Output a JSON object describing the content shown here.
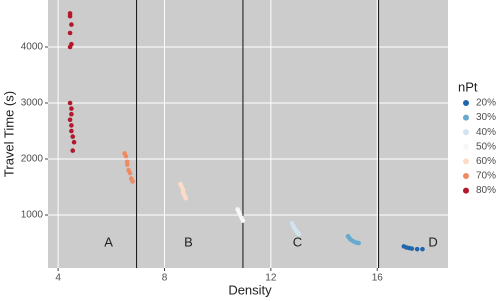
{
  "chart_data": {
    "type": "scatter",
    "x_label": "Density",
    "y_label": "Travel Time (s)",
    "legend_title": "nPt",
    "xlim": [
      3.62,
      18.66
    ],
    "ylim": [
      54,
      4839
    ],
    "xticks": [
      4,
      8,
      12,
      16
    ],
    "yticks": [
      1000,
      2000,
      3000,
      4000
    ],
    "grid": true,
    "legend": "right",
    "vlines": [
      6.95,
      10.95,
      16.05
    ],
    "annotations": [
      {
        "text": "A",
        "x": 5.9,
        "y": 500
      },
      {
        "text": "B",
        "x": 8.9,
        "y": 500
      },
      {
        "text": "C",
        "x": 13.0,
        "y": 500
      },
      {
        "text": "D",
        "x": 18.1,
        "y": 500
      }
    ],
    "series": [
      {
        "name": "20%",
        "color": "#2166ac",
        "x": [
          17.0,
          17.1,
          17.2,
          17.3,
          17.5,
          17.7
        ],
        "values": [
          440,
          420,
          410,
          400,
          390,
          390
        ]
      },
      {
        "name": "30%",
        "color": "#67a9cf",
        "x": [
          14.9,
          14.95,
          15.0,
          15.1,
          15.2,
          15.3
        ],
        "values": [
          620,
          590,
          560,
          530,
          510,
          500
        ]
      },
      {
        "name": "40%",
        "color": "#d1e5f0",
        "x": [
          12.8,
          12.85,
          12.9,
          12.95,
          13.0,
          13.05
        ],
        "values": [
          850,
          800,
          750,
          720,
          690,
          660
        ]
      },
      {
        "name": "50%",
        "color": "#f7f7f7",
        "x": [
          10.75,
          10.8,
          10.85,
          10.9,
          10.95
        ],
        "values": [
          1100,
          1050,
          1000,
          950,
          900
        ]
      },
      {
        "name": "60%",
        "color": "#fddbc7",
        "x": [
          8.6,
          8.65,
          8.7,
          8.7,
          8.75,
          8.8
        ],
        "values": [
          1550,
          1500,
          1450,
          1400,
          1350,
          1300
        ]
      },
      {
        "name": "70%",
        "color": "#ef8a62",
        "x": [
          6.5,
          6.55,
          6.6,
          6.6,
          6.65,
          6.7,
          6.75,
          6.8
        ],
        "values": [
          2100,
          2050,
          1950,
          1900,
          1800,
          1750,
          1650,
          1600
        ]
      },
      {
        "name": "80%",
        "color": "#b2182b",
        "x": [
          4.45,
          4.45,
          4.5,
          4.45,
          4.5,
          4.45,
          4.45,
          4.5,
          4.5,
          4.45,
          4.5,
          4.5,
          4.55,
          4.6,
          4.55
        ],
        "values": [
          4600,
          4550,
          4400,
          4250,
          4050,
          4000,
          3000,
          2900,
          2800,
          2700,
          2600,
          2500,
          2400,
          2300,
          2150
        ]
      }
    ]
  }
}
